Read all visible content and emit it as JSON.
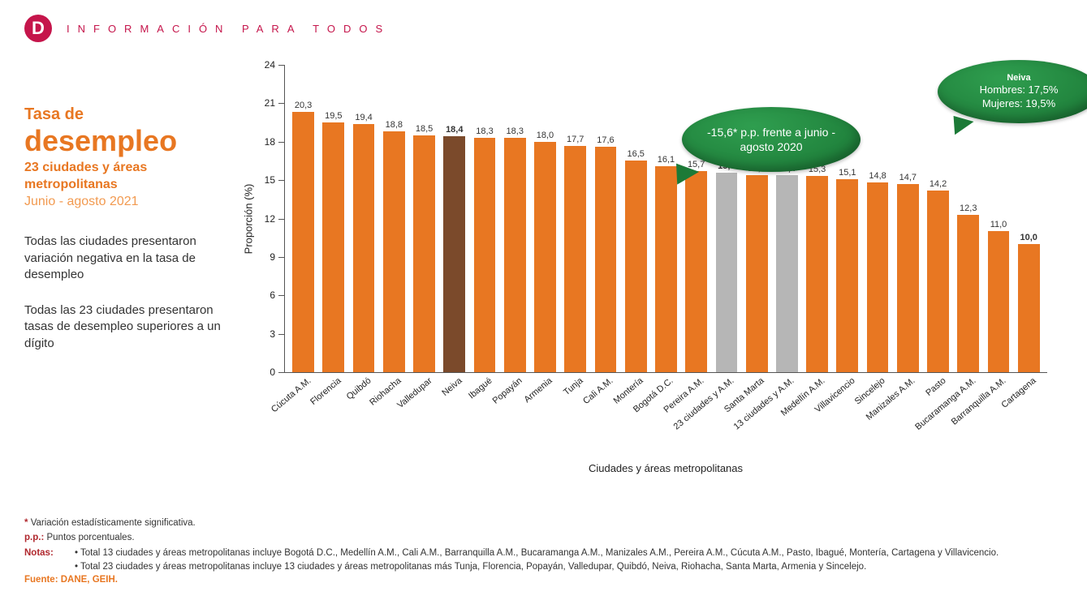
{
  "header": {
    "logo_letter": "D",
    "tagline": "INFORMACIÓN PARA TODOS"
  },
  "left": {
    "title_small": "Tasa de",
    "title_big": "desempleo",
    "title_sub": "23 ciudades y áreas metropolitanas",
    "title_date": "Junio - agosto 2021",
    "p1": "Todas las ciudades presentaron variación negativa en la tasa de desempleo",
    "p2": "Todas las 23 ciudades presentaron tasas de desempleo superiores a un dígito"
  },
  "chart": {
    "type": "bar",
    "ylabel": "Proporción (%)",
    "xlabel": "Ciudades y áreas metropolitanas",
    "ylim_max": 24,
    "ytick_step": 3,
    "label_fontsize": 11,
    "title_fontsize": 13,
    "default_bar_color": "#e87722",
    "axis_color": "#555555",
    "background_color": "#ffffff",
    "bars": [
      {
        "name": "Cúcuta A.M.",
        "value": 20.3,
        "label": "20,3"
      },
      {
        "name": "Florencia",
        "value": 19.5,
        "label": "19,5"
      },
      {
        "name": "Quibdó",
        "value": 19.4,
        "label": "19,4"
      },
      {
        "name": "Riohacha",
        "value": 18.8,
        "label": "18,8"
      },
      {
        "name": "Valledupar",
        "value": 18.5,
        "label": "18,5"
      },
      {
        "name": "Neiva",
        "value": 18.4,
        "label": "18,4",
        "color": "#7b4a2b",
        "bold": true
      },
      {
        "name": "Ibagué",
        "value": 18.3,
        "label": "18,3"
      },
      {
        "name": "Popayán",
        "value": 18.3,
        "label": "18,3"
      },
      {
        "name": "Armenia",
        "value": 18.0,
        "label": "18,0"
      },
      {
        "name": "Tunja",
        "value": 17.7,
        "label": "17,7"
      },
      {
        "name": "Cali A.M.",
        "value": 17.6,
        "label": "17,6"
      },
      {
        "name": "Montería",
        "value": 16.5,
        "label": "16,5"
      },
      {
        "name": "Bogotá D.C.",
        "value": 16.1,
        "label": "16,1"
      },
      {
        "name": "Pereira A.M.",
        "value": 15.7,
        "label": "15,7"
      },
      {
        "name": "23 ciudades y A.M.",
        "value": 15.6,
        "label": "15,6",
        "color": "#b6b6b6",
        "bold": true
      },
      {
        "name": "Santa Marta",
        "value": 15.4,
        "label": "15,4"
      },
      {
        "name": "13 ciudades y A.M.",
        "value": 15.4,
        "label": "15,4",
        "color": "#b6b6b6",
        "bold": true
      },
      {
        "name": "Medellín A.M.",
        "value": 15.3,
        "label": "15,3"
      },
      {
        "name": "Villavicencio",
        "value": 15.1,
        "label": "15,1"
      },
      {
        "name": "Sincelejo",
        "value": 14.8,
        "label": "14,8"
      },
      {
        "name": "Manizales A.M.",
        "value": 14.7,
        "label": "14,7"
      },
      {
        "name": "Pasto",
        "value": 14.2,
        "label": "14,2"
      },
      {
        "name": "Bucaramanga A.M.",
        "value": 12.3,
        "label": "12,3"
      },
      {
        "name": "Barranquilla A.M.",
        "value": 11.0,
        "label": "11,0"
      },
      {
        "name": "Cartagena",
        "value": 10.0,
        "label": "10,0",
        "bold": true
      }
    ],
    "callout1": "-15,6* p.p. frente a junio - agosto 2020",
    "callout2_title": "Neiva",
    "callout2_line1": "Hombres: 17,5%",
    "callout2_line2": "Mujeres: 19,5%"
  },
  "foot": {
    "asterisk_label": "*",
    "asterisk_text": "Variación estadísticamente significativa.",
    "pp_label": "p.p.:",
    "pp_text": "Puntos porcentuales.",
    "notes_label": "Notas:",
    "notes_1": "• Total 13 ciudades y áreas metropolitanas incluye Bogotá D.C., Medellín A.M., Cali A.M., Barranquilla A.M., Bucaramanga A.M., Manizales A.M., Pereira A.M., Cúcuta A.M., Pasto, Ibagué, Montería, Cartagena y Villavicencio.",
    "notes_2": "• Total 23 ciudades y áreas metropolitanas incluye 13 ciudades y áreas metropolitanas más Tunja, Florencia, Popayán, Valledupar, Quibdó, Neiva, Riohacha, Santa Marta, Armenia y Sincelejo.",
    "source_label": "Fuente: DANE, GEIH."
  }
}
